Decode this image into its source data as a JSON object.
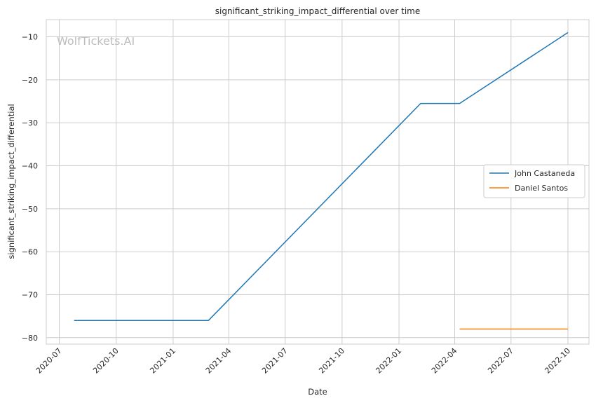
{
  "watermark": "WolfTickets.AI",
  "chart_data": {
    "type": "line",
    "title": "significant_striking_impact_differential over time",
    "xlabel": "Date",
    "ylabel": "significant_striking_impact_differential",
    "xlim": [
      "2020-06-10",
      "2022-11-04"
    ],
    "ylim": [
      -81.5,
      -6.0
    ],
    "x_ticks": [
      "2020-07",
      "2020-10",
      "2021-01",
      "2021-04",
      "2021-07",
      "2021-10",
      "2022-01",
      "2022-04",
      "2022-07",
      "2022-10"
    ],
    "y_ticks": [
      -80,
      -70,
      -60,
      -50,
      -40,
      -30,
      -20,
      -10
    ],
    "grid": true,
    "legend_position": "center-right",
    "series": [
      {
        "name": "John Castaneda",
        "color": "#1f77b4",
        "x": [
          "2020-07-25",
          "2021-02-27",
          "2022-02-05",
          "2022-04-09",
          "2022-10-01"
        ],
        "y": [
          -76,
          -76,
          -25.5,
          -25.5,
          -9
        ]
      },
      {
        "name": "Daniel Santos",
        "color": "#ff7f0e",
        "x": [
          "2022-04-09",
          "2022-10-01"
        ],
        "y": [
          -78,
          -78
        ]
      }
    ]
  }
}
